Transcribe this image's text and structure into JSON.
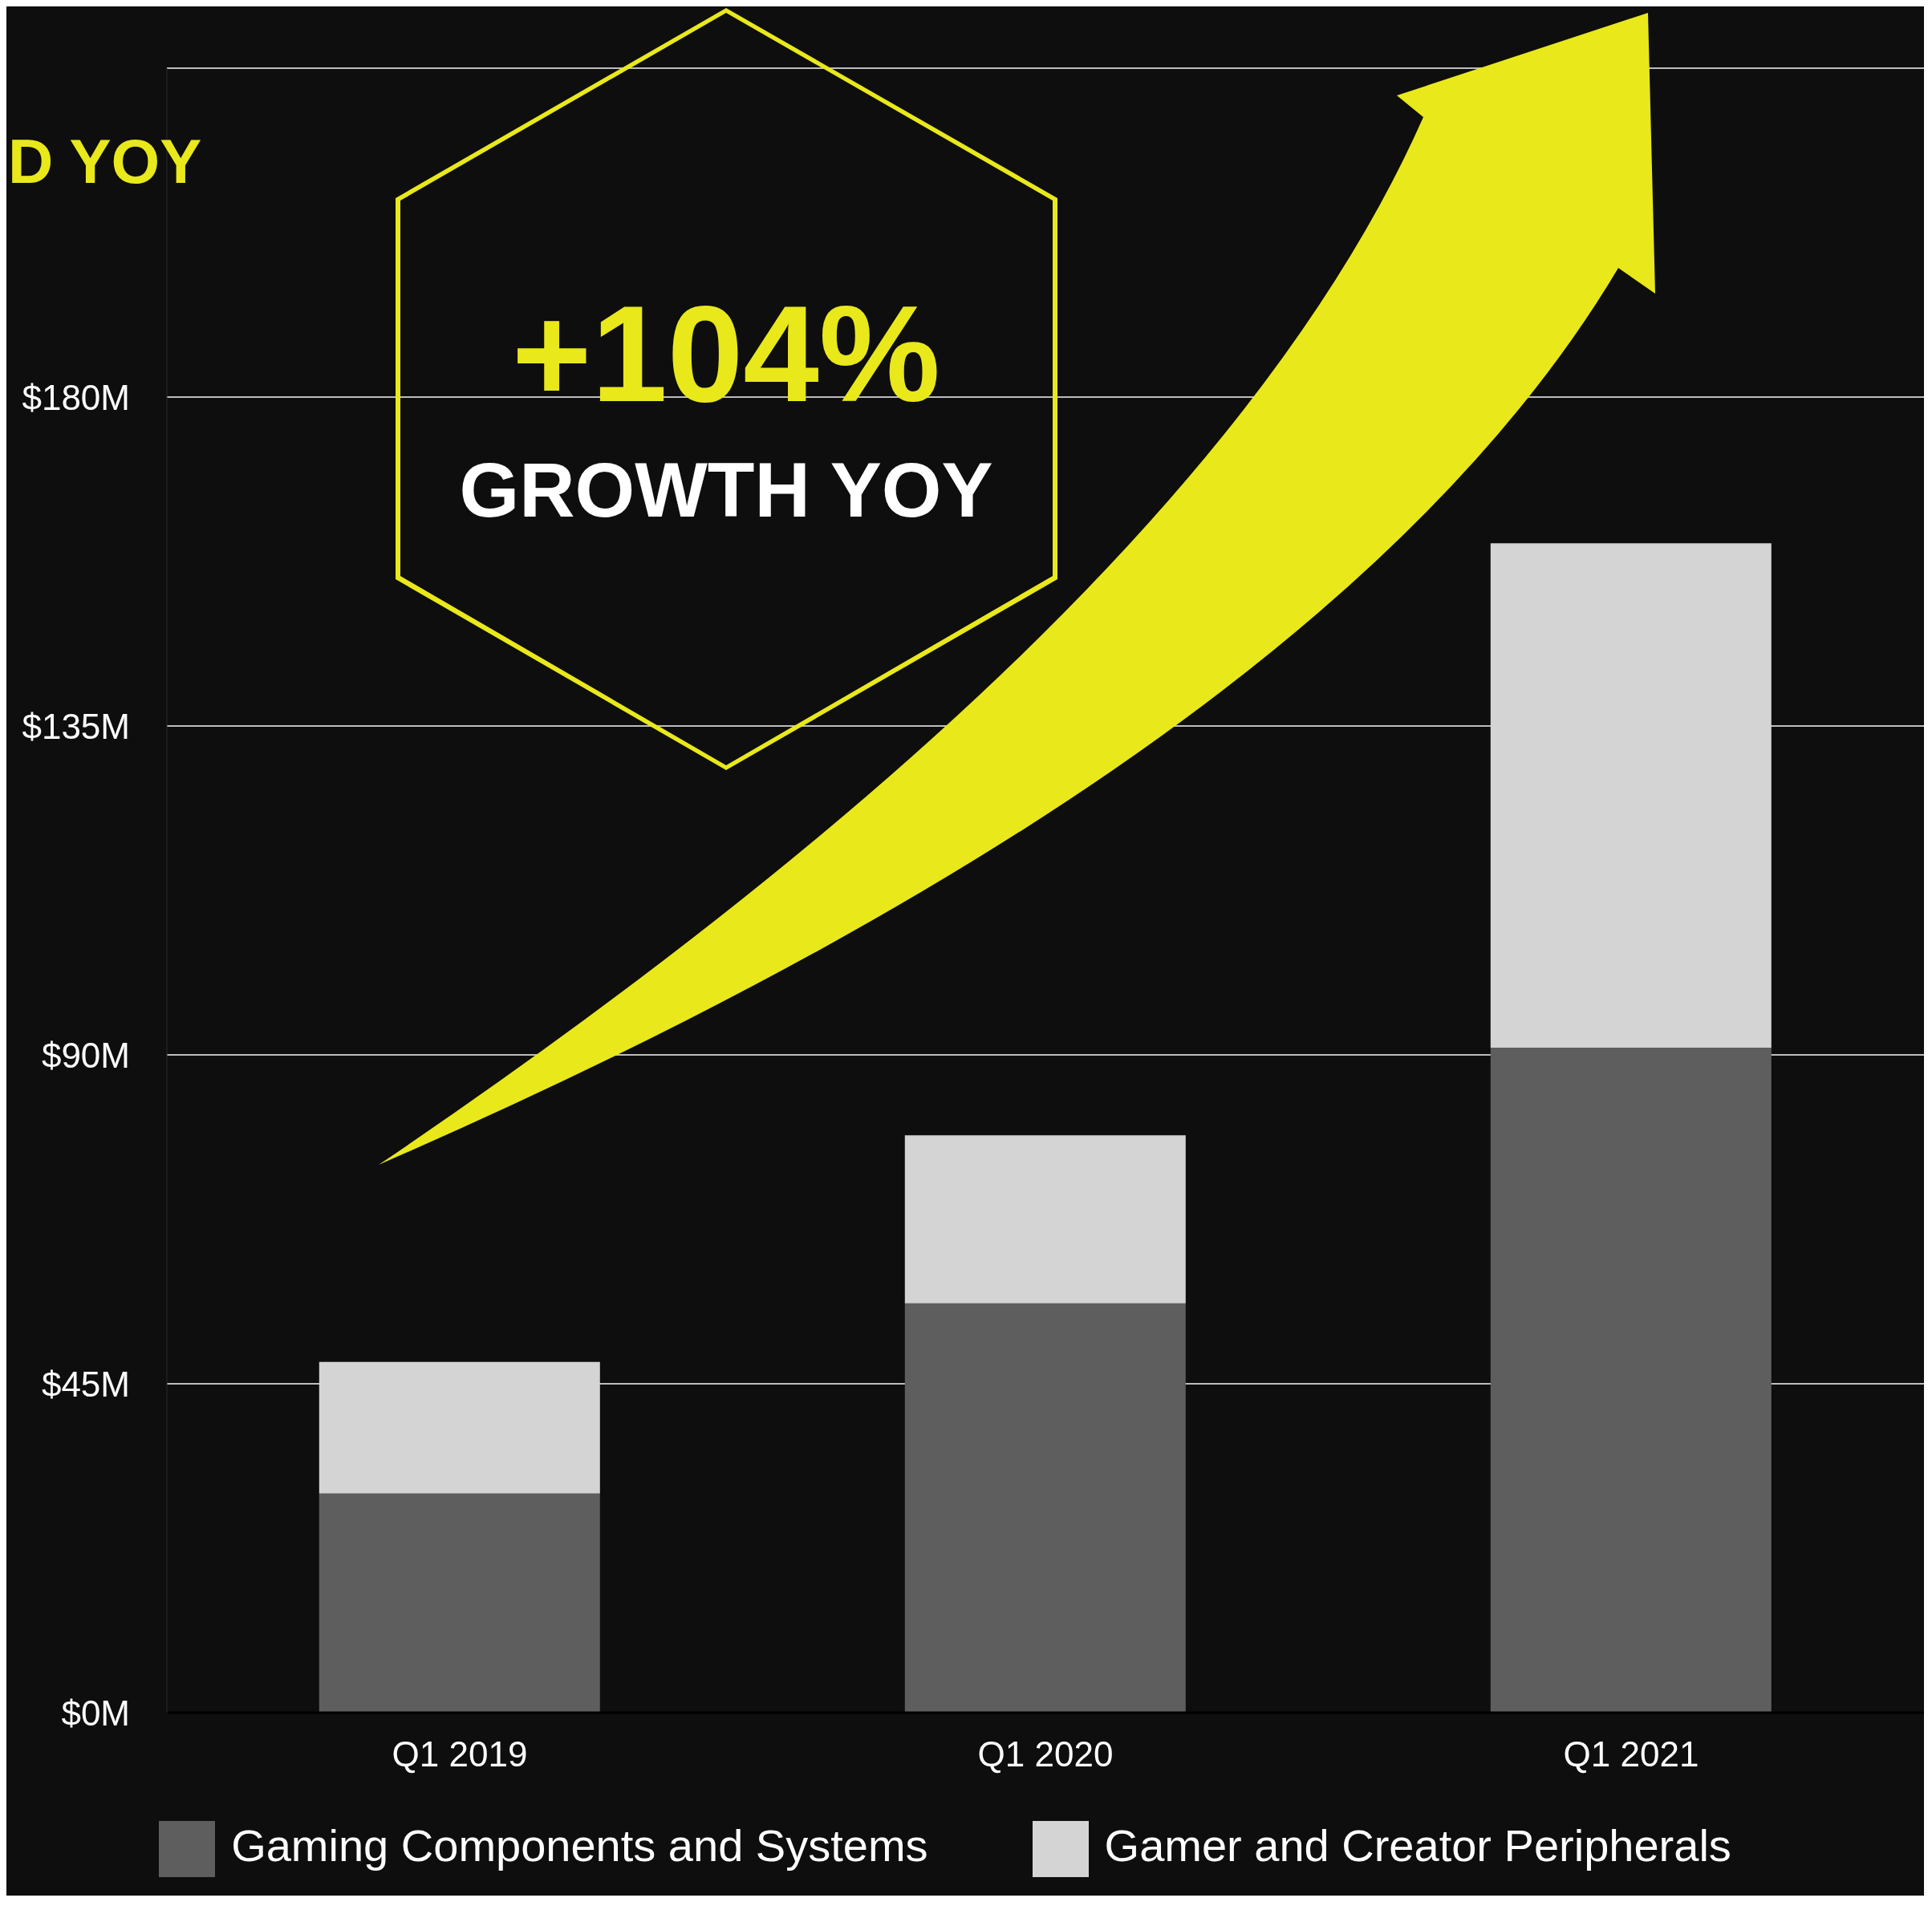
{
  "chart_data": {
    "type": "bar",
    "stacked": true,
    "categories": [
      "Q1 2019",
      "Q1 2020",
      "Q1 2021"
    ],
    "series": [
      {
        "name": "Gaming Components and Systems",
        "color": "#5e5e5e",
        "values": [
          30,
          56,
          91
        ]
      },
      {
        "name": "Gamer and Creator Peripherals",
        "color": "#d4d4d4",
        "values": [
          18,
          23,
          69
        ]
      }
    ],
    "ylim": [
      0,
      225
    ],
    "yticks": [
      {
        "value": 0,
        "label": "$0M"
      },
      {
        "value": 45,
        "label": "$45M"
      },
      {
        "value": 90,
        "label": "$90M"
      },
      {
        "value": 135,
        "label": "$135M"
      },
      {
        "value": 180,
        "label": "$180M"
      }
    ],
    "grid": "y",
    "legend": "bottom",
    "annotations": [
      "+104%",
      "GROWTH YOY",
      "D YOY"
    ]
  }
}
